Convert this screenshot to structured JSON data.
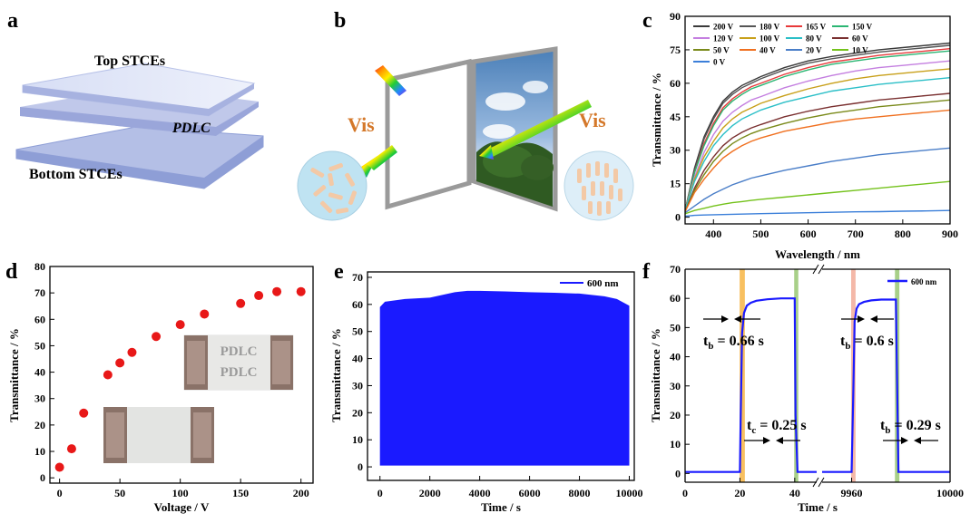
{
  "panels": {
    "a": {
      "label": "a",
      "top_label": "Top STCEs",
      "middle_label": "PDLC",
      "bottom_label": "Bottom STCEs"
    },
    "b": {
      "label": "b",
      "vis_left": "Vis",
      "vis_right": "Vis"
    },
    "c": {
      "label": "c"
    },
    "d": {
      "label": "d",
      "inset_text_1": "PDLC",
      "inset_text_2": "PDLC"
    },
    "e": {
      "label": "e"
    },
    "f": {
      "label": "f"
    }
  },
  "colors": {
    "panel_a_layer": "#c8d0ec",
    "panel_a_edge": "#8e9ed6",
    "vis_text": "#d4782a",
    "circle_fill": "#bfe3f2",
    "rod_fill": "#f3c9a6",
    "scatter_red": "#e81818",
    "blue_line": "#1a1aff",
    "orange_band": "#f8c060",
    "green_band": "#a8d088",
    "pink_band": "#f4b8a8"
  },
  "chart_data": [
    {
      "id": "c",
      "type": "line",
      "title": "",
      "xlabel": "Wavelength / nm",
      "ylabel": "Transmittance / %",
      "xlim": [
        340,
        900
      ],
      "ylim": [
        -3,
        90
      ],
      "xticks": [
        400,
        500,
        600,
        700,
        800,
        900
      ],
      "yticks": [
        0,
        15,
        30,
        45,
        60,
        75,
        90
      ],
      "legend_position": "top-left",
      "x": [
        340,
        360,
        380,
        400,
        420,
        440,
        460,
        480,
        500,
        550,
        600,
        650,
        700,
        750,
        800,
        850,
        900
      ],
      "series": [
        {
          "name": "200 V",
          "color": "#3a3a3a",
          "values": [
            3,
            22,
            36,
            45,
            52,
            56,
            59,
            61,
            63,
            67,
            70,
            72,
            73.5,
            75,
            76,
            77,
            78
          ]
        },
        {
          "name": "180 V",
          "color": "#555555",
          "values": [
            3,
            21,
            35,
            44,
            51,
            55,
            58,
            60,
            62,
            66,
            69,
            71,
            72.5,
            74,
            75,
            76,
            77
          ]
        },
        {
          "name": "165 V",
          "color": "#e8393a",
          "values": [
            3,
            20,
            33,
            42,
            49,
            53,
            56,
            58.5,
            60,
            64,
            67,
            69.5,
            71,
            72.5,
            73.5,
            74.5,
            75.5
          ]
        },
        {
          "name": "150 V",
          "color": "#2bb673",
          "values": [
            3,
            20,
            32,
            41,
            48,
            52,
            55,
            57.5,
            59,
            63,
            66,
            68.5,
            70,
            71.5,
            72.5,
            73.5,
            74.5
          ]
        },
        {
          "name": "120 V",
          "color": "#c47fe0",
          "values": [
            3,
            18,
            29,
            37,
            43,
            47,
            50,
            52.5,
            54,
            58,
            61,
            63.5,
            65.5,
            67,
            68,
            69,
            70
          ]
        },
        {
          "name": "100 V",
          "color": "#c8a01a",
          "values": [
            3,
            17,
            27,
            34,
            40,
            44,
            47,
            49,
            51,
            54.5,
            57.5,
            60,
            62,
            63.5,
            64.5,
            65.5,
            66.5
          ]
        },
        {
          "name": "80 V",
          "color": "#2bbfc7",
          "values": [
            3,
            16,
            25,
            32,
            37,
            41,
            44,
            46,
            48,
            51.5,
            54,
            56.5,
            58,
            59.5,
            60.5,
            61.5,
            62.5
          ]
        },
        {
          "name": "60 V",
          "color": "#7a3030",
          "values": [
            2.5,
            13,
            21,
            27,
            32,
            35.5,
            38,
            40,
            41.5,
            45,
            47.5,
            49.5,
            51,
            52.5,
            53.5,
            54.5,
            55.5
          ]
        },
        {
          "name": "50 V",
          "color": "#7a8a1a",
          "values": [
            2.5,
            12,
            19,
            25,
            29.5,
            33,
            35.5,
            37.5,
            39,
            42,
            44.5,
            46.5,
            48,
            49.5,
            50.5,
            51.5,
            52.5
          ]
        },
        {
          "name": "40 V",
          "color": "#f07020",
          "values": [
            2.5,
            11,
            17,
            22,
            26.5,
            29.5,
            32,
            34,
            35.5,
            38.5,
            40.5,
            42.5,
            44,
            45,
            46,
            47,
            48
          ]
        },
        {
          "name": "20 V",
          "color": "#4a7ec8",
          "values": [
            2,
            5,
            8,
            10.5,
            12.5,
            14.5,
            16,
            17.5,
            18.5,
            21,
            23,
            25,
            26.5,
            28,
            29,
            30,
            31
          ]
        },
        {
          "name": "10 V",
          "color": "#74c21c",
          "values": [
            1.5,
            3,
            4,
            5,
            5.8,
            6.5,
            7,
            7.5,
            8,
            9,
            10,
            11,
            12,
            13,
            14,
            15,
            16
          ]
        },
        {
          "name": "0 V",
          "color": "#3b7fd9",
          "values": [
            0.5,
            0.8,
            1,
            1.1,
            1.2,
            1.3,
            1.4,
            1.5,
            1.6,
            1.8,
            2,
            2.2,
            2.4,
            2.5,
            2.7,
            2.8,
            3
          ]
        }
      ]
    },
    {
      "id": "d",
      "type": "scatter",
      "title": "",
      "xlabel": "Voltage / V",
      "ylabel": "Transmittance / %",
      "xlim": [
        -8,
        210
      ],
      "ylim": [
        -2,
        80
      ],
      "xticks": [
        0,
        50,
        100,
        150,
        200
      ],
      "yticks": [
        0,
        10,
        20,
        30,
        40,
        50,
        60,
        70,
        80
      ],
      "points": [
        [
          0,
          4
        ],
        [
          10,
          11
        ],
        [
          20,
          24.5
        ],
        [
          40,
          39
        ],
        [
          50,
          43.5
        ],
        [
          60,
          47.5
        ],
        [
          80,
          53.5
        ],
        [
          100,
          58
        ],
        [
          120,
          62
        ],
        [
          150,
          66
        ],
        [
          165,
          69
        ],
        [
          180,
          70.5
        ],
        [
          200,
          70.5
        ]
      ]
    },
    {
      "id": "e",
      "type": "area",
      "title": "",
      "xlabel": "Time / s",
      "ylabel": "Transmittance / %",
      "xlim": [
        -500,
        10200
      ],
      "ylim": [
        -5,
        72
      ],
      "xticks": [
        0,
        2000,
        4000,
        6000,
        8000,
        10000
      ],
      "yticks": [
        0,
        10,
        20,
        30,
        40,
        50,
        60,
        70
      ],
      "legend_position": "top-right",
      "series": [
        {
          "name": "600 nm",
          "color": "#1a1aff",
          "x": [
            0,
            200,
            1000,
            2000,
            3000,
            3500,
            4000,
            5000,
            6000,
            7000,
            8000,
            9000,
            9500,
            10000
          ],
          "min_value": 0.5,
          "values": [
            59,
            61,
            62,
            62.5,
            64.5,
            65,
            65,
            64.8,
            64.5,
            64.3,
            64,
            63,
            62,
            59.5
          ]
        }
      ]
    },
    {
      "id": "f",
      "type": "line",
      "title": "",
      "xlabel": "Time / s",
      "ylabel": "Transmittance / %",
      "ylim": [
        -3,
        70
      ],
      "xticks": [
        "0",
        "20",
        "40",
        "9960",
        "10000"
      ],
      "yticks": [
        0,
        10,
        20,
        30,
        40,
        50,
        60,
        70
      ],
      "legend_position": "top-right",
      "series": [
        {
          "name": "600 nm",
          "color": "#1a1aff",
          "segment1_x": [
            0,
            20,
            20.3,
            20.8,
            21.5,
            22.5,
            24,
            26,
            30,
            35,
            40,
            40.3,
            41,
            48
          ],
          "segment1_y": [
            0.5,
            0.5,
            20,
            48,
            55,
            57.5,
            58.5,
            59.2,
            59.7,
            60,
            60,
            20,
            0.5,
            0.5
          ],
          "segment2_x": [
            9948,
            9960,
            9960.6,
            9961.2,
            9962,
            9963,
            9965,
            9968,
            9972,
            9976,
            9978,
            9979,
            9986,
            10000
          ],
          "segment2_y": [
            0.5,
            0.5,
            25,
            52,
            56.5,
            58,
            58.8,
            59.3,
            59.6,
            59.6,
            59.6,
            0.5,
            0.5,
            0.5
          ]
        }
      ],
      "annotations": {
        "t1": "t",
        "t1_sub": "b",
        "t1_value": " = 0.66 s",
        "t2": "t",
        "t2_sub": "b",
        "t2_value": " = 0.6 s",
        "t3": "t",
        "t3_sub": "c",
        "t3_value": " = 0.25 s",
        "t4": "t",
        "t4_sub": "b",
        "t4_value": " = 0.29 s"
      }
    }
  ]
}
